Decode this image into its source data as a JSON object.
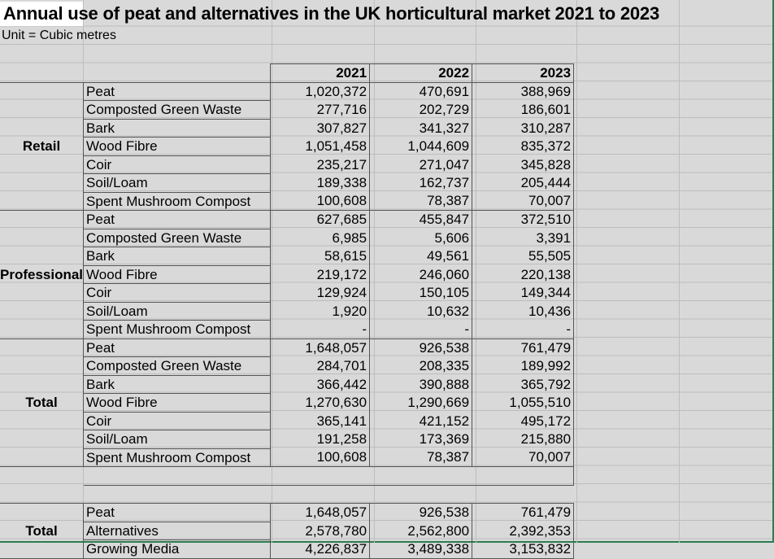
{
  "title": "Annual use of peat and alternatives in the UK horticultural market 2021 to 2023",
  "subtitle": "Unit = Cubic metres",
  "years": [
    "2021",
    "2022",
    "2023"
  ],
  "groups": [
    {
      "name": "Retail",
      "rows": [
        {
          "item": "Peat",
          "values": [
            "1,020,372",
            "470,691",
            "388,969"
          ]
        },
        {
          "item": "Composted Green Waste",
          "values": [
            "277,716",
            "202,729",
            "186,601"
          ]
        },
        {
          "item": "Bark",
          "values": [
            "307,827",
            "341,327",
            "310,287"
          ]
        },
        {
          "item": "Wood Fibre",
          "values": [
            "1,051,458",
            "1,044,609",
            "835,372"
          ]
        },
        {
          "item": "Coir",
          "values": [
            "235,217",
            "271,047",
            "345,828"
          ]
        },
        {
          "item": "Soil/Loam",
          "values": [
            "189,338",
            "162,737",
            "205,444"
          ]
        },
        {
          "item": "Spent Mushroom Compost",
          "values": [
            "100,608",
            "78,387",
            "70,007"
          ]
        }
      ]
    },
    {
      "name": "Professional",
      "rows": [
        {
          "item": "Peat",
          "values": [
            "627,685",
            "455,847",
            "372,510"
          ]
        },
        {
          "item": "Composted Green Waste",
          "values": [
            "6,985",
            "5,606",
            "3,391"
          ]
        },
        {
          "item": "Bark",
          "values": [
            "58,615",
            "49,561",
            "55,505"
          ]
        },
        {
          "item": "Wood Fibre",
          "values": [
            "219,172",
            "246,060",
            "220,138"
          ]
        },
        {
          "item": "Coir",
          "values": [
            "129,924",
            "150,105",
            "149,344"
          ]
        },
        {
          "item": "Soil/Loam",
          "values": [
            "1,920",
            "10,632",
            "10,436"
          ]
        },
        {
          "item": "Spent Mushroom Compost",
          "values": [
            "-",
            "-",
            "-"
          ]
        }
      ]
    },
    {
      "name": "Total",
      "rows": [
        {
          "item": "Peat",
          "values": [
            "1,648,057",
            "926,538",
            "761,479"
          ]
        },
        {
          "item": "Composted Green Waste",
          "values": [
            "284,701",
            "208,335",
            "189,992"
          ]
        },
        {
          "item": "Bark",
          "values": [
            "366,442",
            "390,888",
            "365,792"
          ]
        },
        {
          "item": "Wood Fibre",
          "values": [
            "1,270,630",
            "1,290,669",
            "1,055,510"
          ]
        },
        {
          "item": "Coir",
          "values": [
            "365,141",
            "421,152",
            "495,172"
          ]
        },
        {
          "item": "Soil/Loam",
          "values": [
            "191,258",
            "173,369",
            "215,880"
          ]
        },
        {
          "item": "Spent Mushroom Compost",
          "values": [
            "100,608",
            "78,387",
            "70,007"
          ]
        }
      ]
    }
  ],
  "summary": {
    "name": "Total",
    "rows": [
      {
        "item": "Peat",
        "values": [
          "1,648,057",
          "926,538",
          "761,479"
        ]
      },
      {
        "item": "Alternatives",
        "values": [
          "2,578,780",
          "2,562,800",
          "2,392,353"
        ]
      },
      {
        "item": "Growing Media",
        "values": [
          "4,226,837",
          "3,489,338",
          "3,153,832"
        ]
      }
    ]
  },
  "colors": {
    "sheet_bg": "#d9d9d9",
    "gridline": "#bdbdbd",
    "border": "#555555",
    "frame": "#2e7d4f"
  }
}
